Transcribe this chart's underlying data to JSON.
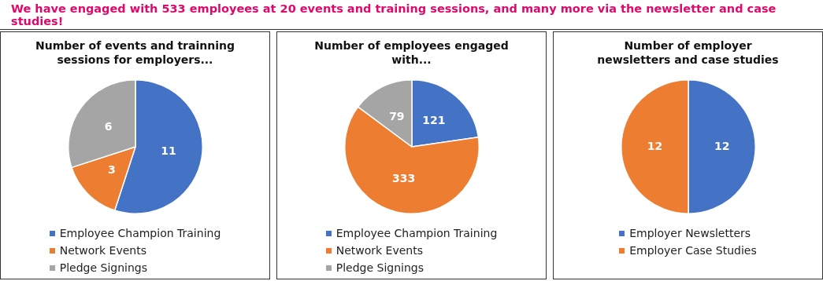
{
  "chart_data": [
    {
      "type": "other",
      "title": "We have engaged with 533 employees at 20 events and training sessions, and many more via the newsletter and case studies!"
    },
    {
      "type": "pie",
      "title": "Number of events and trainning sessions for employers...",
      "categories": [
        "Employee Champion Training",
        "Network Events",
        "Pledge Signings"
      ],
      "values": [
        11,
        3,
        6
      ],
      "colors": [
        "#4472c4",
        "#ed7d31",
        "#a5a5a5"
      ],
      "data_labels": true,
      "legend": "bottom"
    },
    {
      "type": "pie",
      "title": "Number of employees engaged with...",
      "categories": [
        "Employee Champion Training",
        "Network Events",
        "Pledge Signings"
      ],
      "values": [
        121,
        333,
        79
      ],
      "colors": [
        "#4472c4",
        "#ed7d31",
        "#a5a5a5"
      ],
      "data_labels": true,
      "legend": "bottom"
    },
    {
      "type": "pie",
      "title": "Number of employer newsletters and case studies",
      "categories": [
        "Employer Newsletters",
        "Employer Case Studies"
      ],
      "values": [
        12,
        12
      ],
      "colors": [
        "#4472c4",
        "#ed7d31"
      ],
      "data_labels": true,
      "legend": "bottom"
    }
  ]
}
